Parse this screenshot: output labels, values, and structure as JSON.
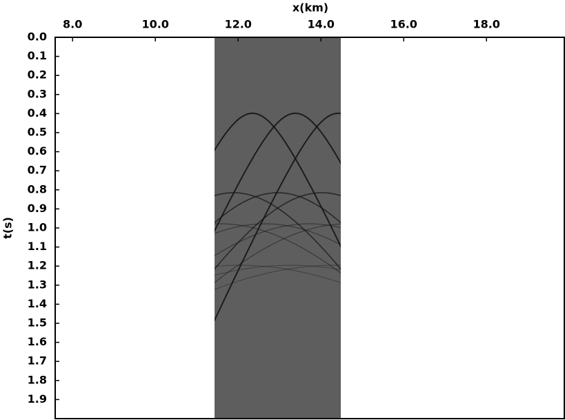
{
  "chart_data": {
    "type": "image",
    "xlabel": "x(km)",
    "ylabel": "t(s)",
    "xlim": [
      7.58,
      19.88
    ],
    "ylim": [
      0,
      2.0
    ],
    "y_inverted": true,
    "xticks": [
      {
        "value": 8,
        "label": "8.0"
      },
      {
        "value": 10,
        "label": "10.0"
      },
      {
        "value": 12,
        "label": "12.0"
      },
      {
        "value": 14,
        "label": "14.0"
      },
      {
        "value": 16,
        "label": "16.0"
      },
      {
        "value": 18,
        "label": "18.0"
      }
    ],
    "yticks": [
      {
        "value": 0,
        "label": "0.0"
      },
      0.1,
      0.2,
      0.3,
      0.4,
      0.5,
      0.6,
      0.7,
      0.8,
      0.9,
      {
        "value": 1,
        "label": "1.0"
      },
      1.1,
      1.2,
      1.3,
      1.4,
      1.5,
      1.6,
      1.7,
      1.8,
      1.9
    ],
    "image_xlim": [
      11.43,
      14.48
    ],
    "image_ylim": [
      0,
      1.9
    ],
    "panel_ylim": [
      0,
      2.0
    ],
    "color": "#5e5e5e"
  }
}
